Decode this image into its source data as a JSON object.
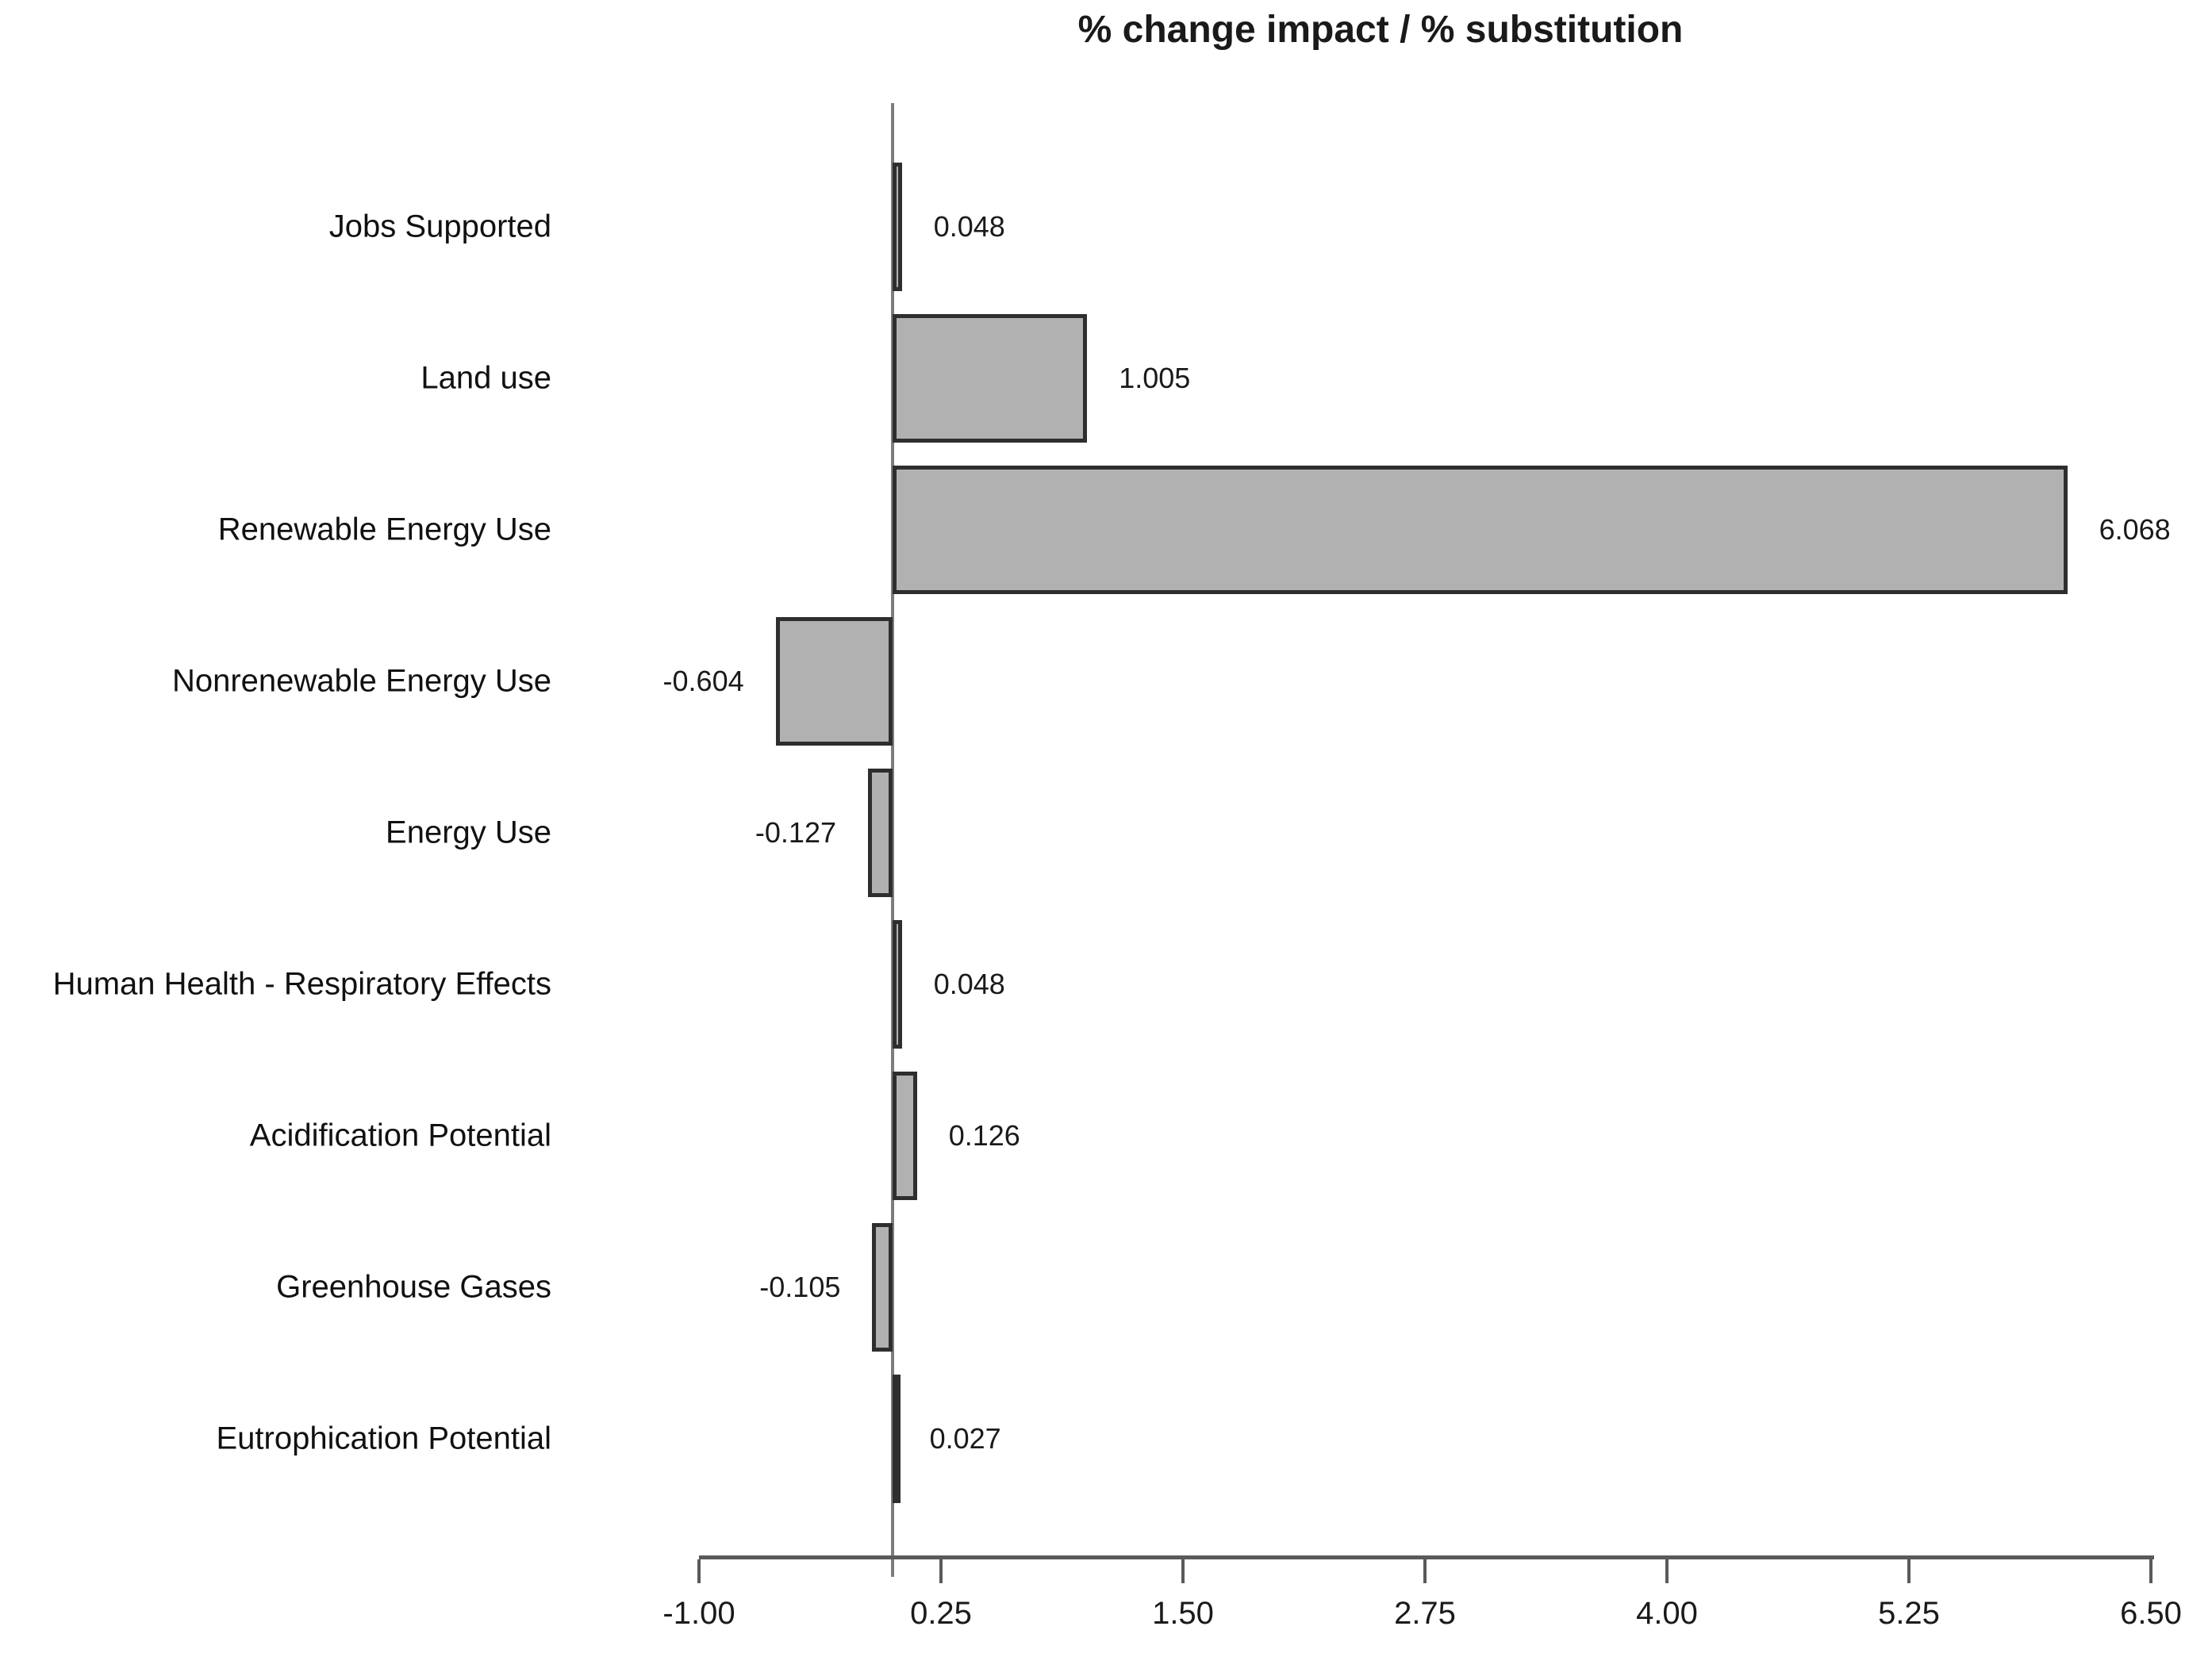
{
  "chart_data": {
    "type": "bar",
    "orientation": "horizontal",
    "title": "% change impact / % substitution",
    "categories": [
      "Jobs Supported",
      "Land use",
      "Renewable Energy Use",
      "Nonrenewable Energy Use",
      "Energy Use",
      "Human Health - Respiratory Effects",
      "Acidification Potential",
      "Greenhouse Gases",
      "Eutrophication Potential"
    ],
    "values": [
      0.048,
      1.005,
      6.068,
      -0.604,
      -0.127,
      0.048,
      0.126,
      -0.105,
      0.027
    ],
    "value_labels": [
      "0.048",
      "1.005",
      "6.068",
      "-0.604",
      "-0.127",
      "0.048",
      "0.126",
      "-0.105",
      "0.027"
    ],
    "x_ticks": [
      -1.0,
      0.25,
      1.5,
      2.75,
      4.0,
      5.25,
      6.5
    ],
    "x_tick_labels": [
      "-1.00",
      "0.25",
      "1.50",
      "2.75",
      "4.00",
      "5.25",
      "6.50"
    ],
    "xlim": [
      -1.0,
      6.5
    ],
    "xlabel": "",
    "ylabel": "",
    "grid": false,
    "legend": false,
    "colors": {
      "bar_fill": "#b1b1b1",
      "bar_border": "#2e2e2e",
      "axis": "#5a5a5a",
      "zero_line": "#7d7d7d",
      "text": "#1a1a1a",
      "background": "#ffffff"
    }
  }
}
